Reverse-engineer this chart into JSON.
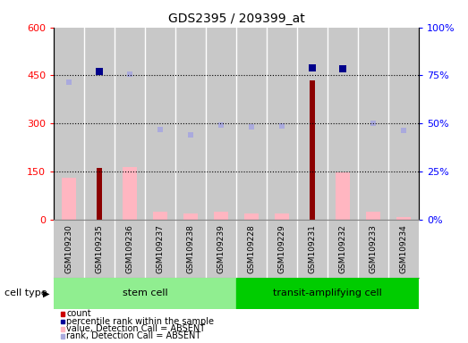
{
  "title": "GDS2395 / 209399_at",
  "samples": [
    "GSM109230",
    "GSM109235",
    "GSM109236",
    "GSM109237",
    "GSM109238",
    "GSM109239",
    "GSM109228",
    "GSM109229",
    "GSM109231",
    "GSM109232",
    "GSM109233",
    "GSM109234"
  ],
  "count": [
    null,
    160,
    null,
    null,
    null,
    null,
    null,
    null,
    435,
    null,
    null,
    null
  ],
  "percentile_rank": [
    null,
    462,
    null,
    null,
    null,
    null,
    null,
    null,
    475,
    470,
    null,
    null
  ],
  "value_absent": [
    130,
    null,
    165,
    25,
    18,
    25,
    20,
    20,
    null,
    148,
    25,
    8
  ],
  "rank_absent": [
    430,
    462,
    455,
    280,
    265,
    295,
    290,
    292,
    null,
    null,
    300,
    277
  ],
  "ylim": [
    0,
    600
  ],
  "yticks": [
    0,
    150,
    300,
    450,
    600
  ],
  "ytick_labels_left": [
    "0",
    "150",
    "300",
    "450",
    "600"
  ],
  "ytick_labels_right": [
    "0%",
    "25%",
    "50%",
    "75%",
    "100%"
  ],
  "hlines": [
    150,
    300,
    450
  ],
  "color_count": "#8B0000",
  "color_percentile": "#00008B",
  "color_value_absent": "#FFB6C1",
  "color_rank_absent": "#AAAADD",
  "color_col_bg": "#C8C8C8",
  "stem_color_light": "#AAFFAA",
  "stem_color_dark": "#00DD00",
  "transit_color": "#00DD00",
  "stem_color": "#90EE90",
  "legend_items": [
    {
      "label": "count",
      "color": "#CC0000"
    },
    {
      "label": "percentile rank within the sample",
      "color": "#000099"
    },
    {
      "label": "value, Detection Call = ABSENT",
      "color": "#FFB6C1"
    },
    {
      "label": "rank, Detection Call = ABSENT",
      "color": "#AAAADD"
    }
  ],
  "n_stem": 6,
  "n_transit": 6
}
